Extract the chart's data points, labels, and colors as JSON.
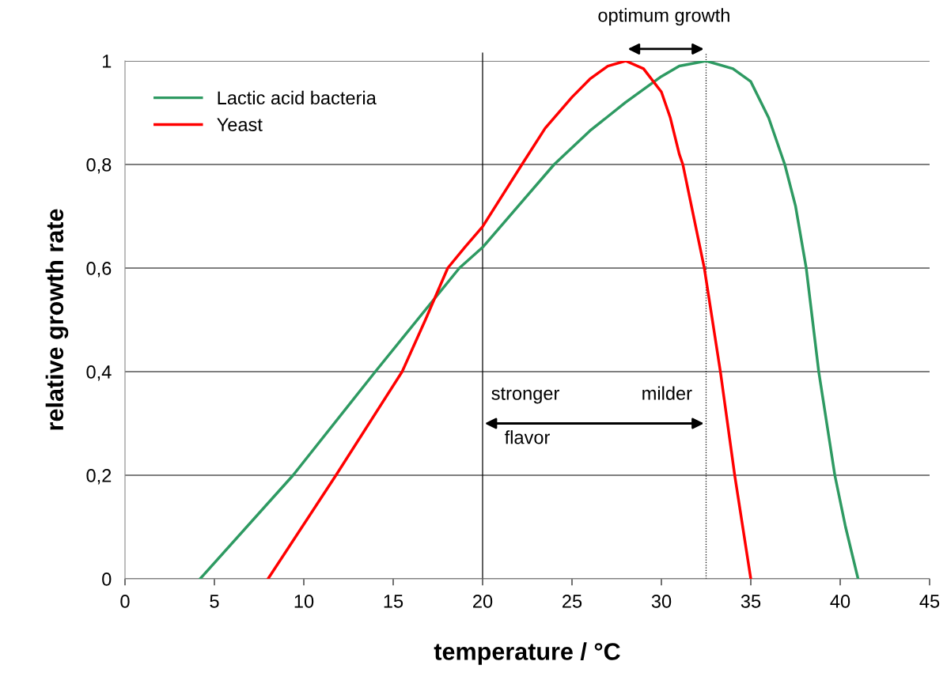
{
  "chart_data": {
    "type": "line",
    "xlabel": "temperature / °C",
    "ylabel": "relative growth rate",
    "series": [
      {
        "name": "Lactic acid bacteria",
        "color": "#2e9a62",
        "x": [
          4.2,
          9.4,
          14.0,
          18.7,
          20,
          24.0,
          26,
          28,
          30,
          31,
          32.5,
          34,
          35,
          36,
          36.9,
          37.5,
          38.1,
          38.8,
          39.7,
          40.3,
          41.0
        ],
        "values": [
          0,
          0.2,
          0.4,
          0.6,
          0.64,
          0.8,
          0.865,
          0.92,
          0.97,
          0.99,
          1.0,
          0.985,
          0.96,
          0.89,
          0.8,
          0.72,
          0.6,
          0.4,
          0.2,
          0.1,
          0
        ]
      },
      {
        "name": "Yeast",
        "color": "#ff0000",
        "x": [
          8.0,
          11.8,
          15.5,
          16.8,
          18.05,
          19,
          20,
          22.2,
          23.5,
          25,
          26,
          27,
          28,
          29,
          30,
          30.5,
          31,
          31.2,
          32.4,
          33.3,
          34.1,
          35.0
        ],
        "values": [
          0,
          0.2,
          0.4,
          0.5,
          0.6,
          0.64,
          0.68,
          0.8,
          0.87,
          0.93,
          0.965,
          0.99,
          1.0,
          0.985,
          0.94,
          0.89,
          0.82,
          0.8,
          0.6,
          0.4,
          0.2,
          0
        ]
      }
    ],
    "xlim": [
      0,
      45
    ],
    "xticks": [
      0,
      5,
      10,
      15,
      20,
      25,
      30,
      35,
      40,
      45
    ],
    "ylim": [
      0,
      1
    ],
    "yticks": [
      {
        "value": 0,
        "label": "0"
      },
      {
        "value": 0.2,
        "label": "0,2"
      },
      {
        "value": 0.4,
        "label": "0,4"
      },
      {
        "value": 0.6,
        "label": "0,6"
      },
      {
        "value": 0.8,
        "label": "0,8"
      },
      {
        "value": 1,
        "label": "1"
      }
    ],
    "ref_lines": [
      {
        "axis": "x",
        "value": 20,
        "color": "#000000",
        "line_style": "solid"
      },
      {
        "axis": "x",
        "value": 32.5,
        "color": "#000000",
        "line_style": "dotted"
      }
    ],
    "annotations": [
      "optimum growth",
      "stronger",
      "milder",
      "flavor"
    ],
    "grid": "y",
    "legend": "top left",
    "line_style": "solid",
    "marker": "none"
  }
}
